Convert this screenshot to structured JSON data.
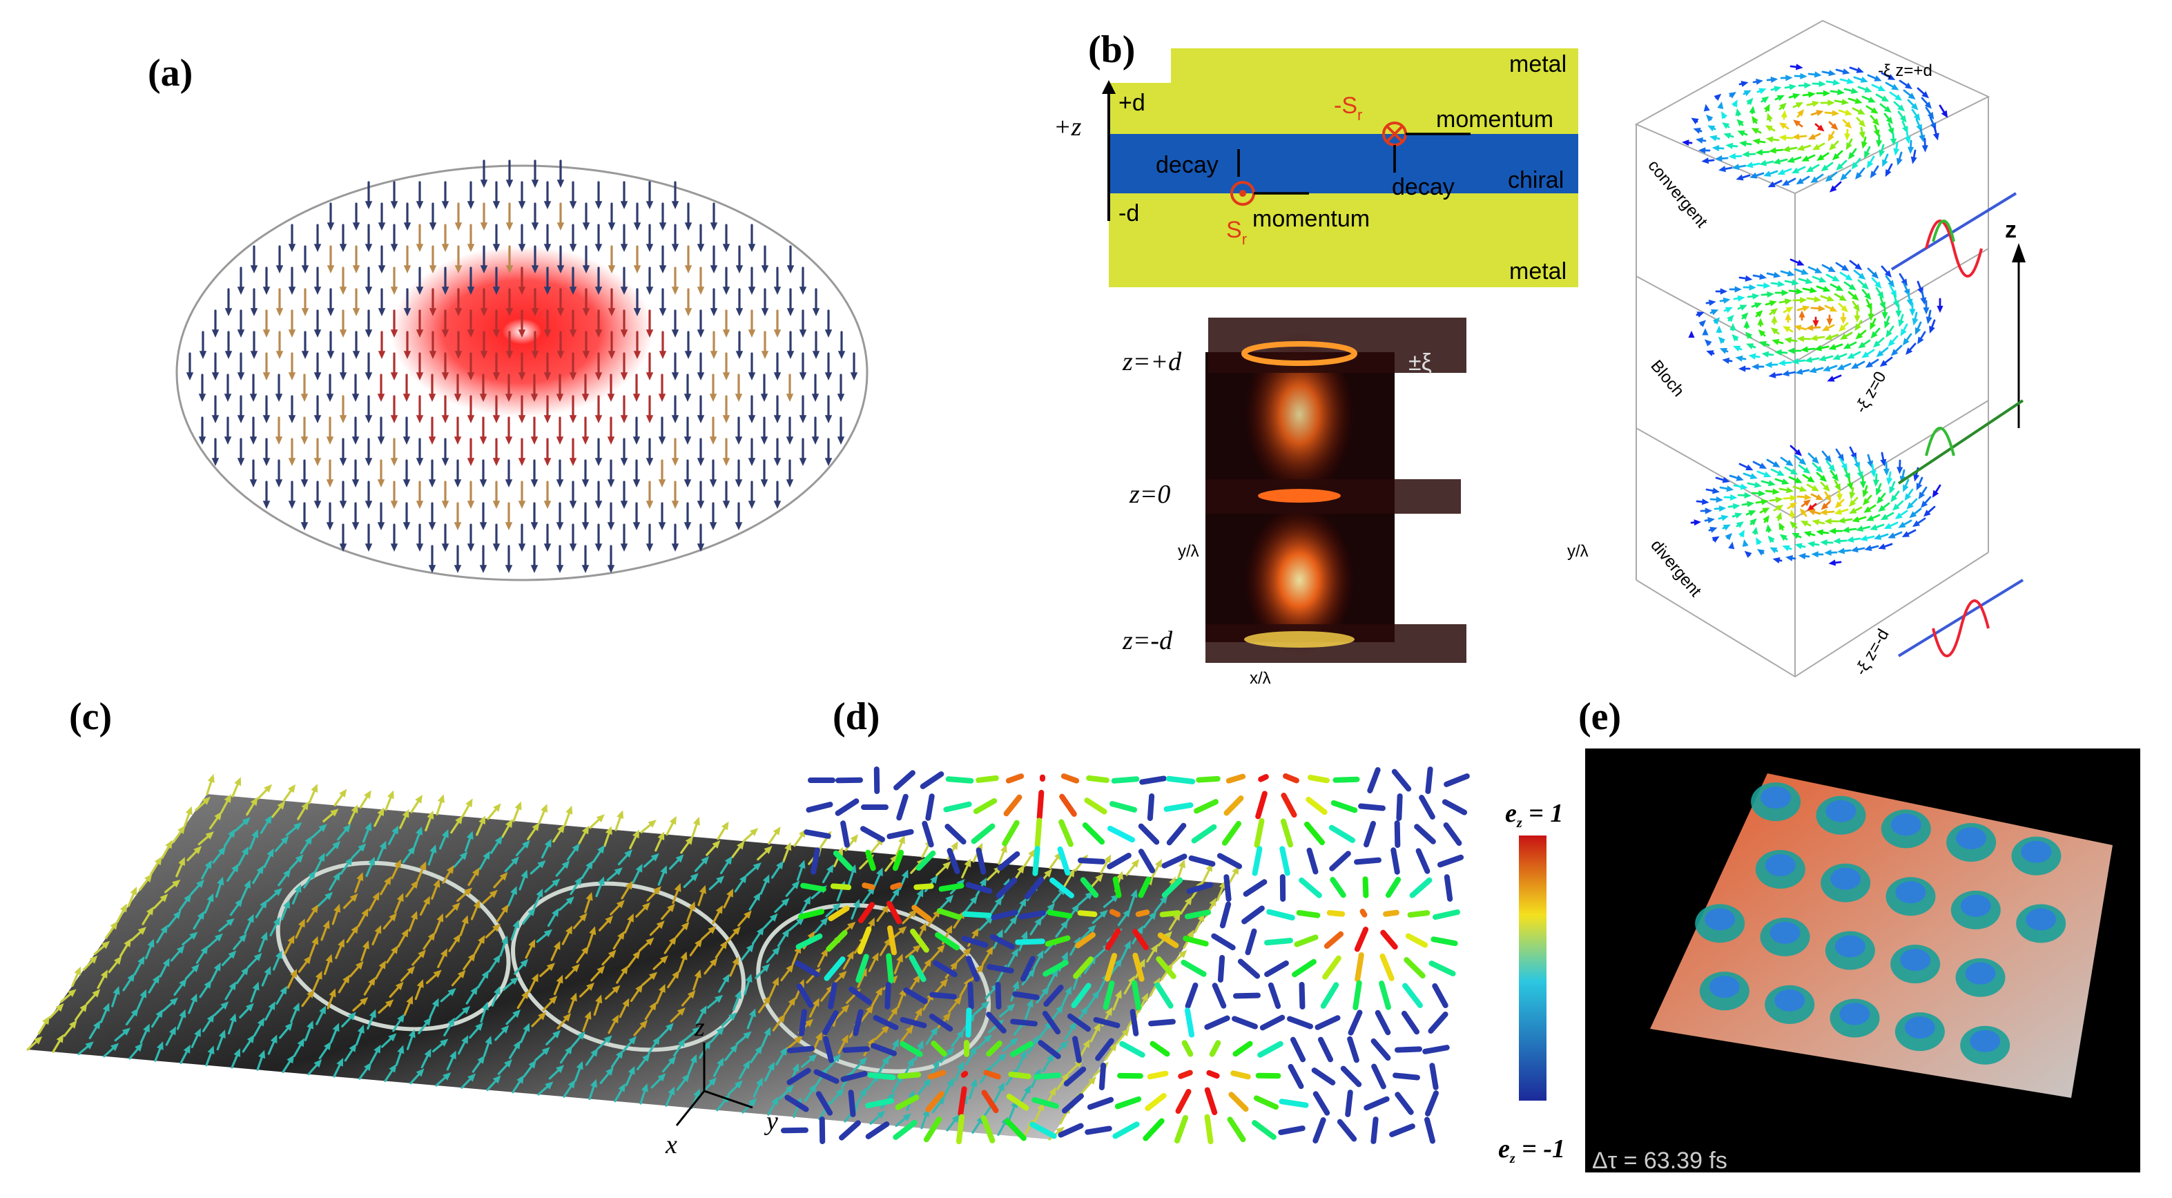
{
  "panels": {
    "a": {
      "label": "(a)"
    },
    "b": {
      "label": "(b)",
      "schematic": {
        "metal_top": "metal",
        "metal_bottom": "metal",
        "plus_z": "+z",
        "plus_d": "+d",
        "minus_d": "-d",
        "minus_s": {
          "main": "-S",
          "sub": "r"
        },
        "s": {
          "main": "S",
          "sub": "r"
        },
        "momentum_top": "momentum",
        "momentum_bottom": "momentum",
        "decay_left": "decay",
        "decay_right": "decay",
        "chiral": "chiral"
      },
      "volume": {
        "z_top": "z=+d",
        "xi": "±ξ",
        "z_mid": "z=0",
        "y_left": "y/λ",
        "y_right": "y/λ",
        "z_bottom": "z=-d",
        "x": "x/λ"
      },
      "cube": {
        "top": "-ξ z=+d",
        "mid": "-ξ z=0",
        "bottom": "-ξ z=-d",
        "convergent": "convergent",
        "bloch": "Bloch",
        "divergent": "divergent",
        "axis": "z"
      }
    },
    "c": {
      "label": "(c)",
      "axes": {
        "z": "z",
        "y": "y",
        "x": "x"
      }
    },
    "d": {
      "label": "(d)",
      "colorbar_top": {
        "main": "e",
        "sub": "z",
        "rest": " = 1"
      },
      "colorbar_bottom": {
        "main": "e",
        "sub": "z",
        "rest": " = -1"
      }
    },
    "e": {
      "label": "(e)",
      "time": "Δτ = 63.39 fs"
    }
  }
}
